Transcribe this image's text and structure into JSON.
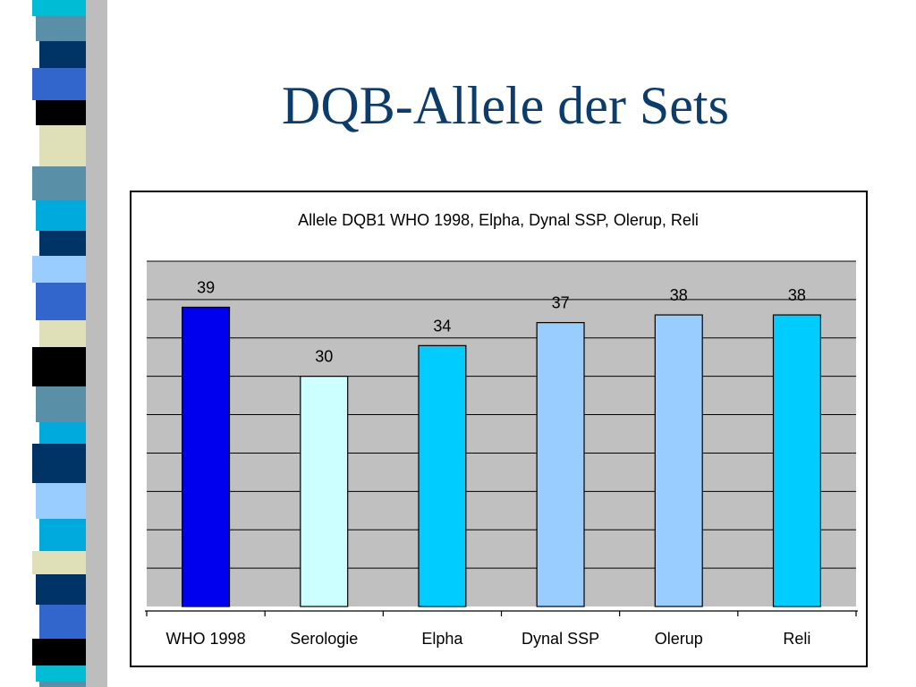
{
  "slide": {
    "title": "DQB-Allele der Sets"
  },
  "colors": {
    "title": "#0b3c6b",
    "plot_background": "#c0c0c0"
  },
  "chart_data": {
    "type": "bar",
    "title": "Allele DQB1 WHO 1998, Elpha, Dynal SSP, Olerup, Reli",
    "categories": [
      "WHO 1998",
      "Serologie",
      "Elpha",
      "Dynal SSP",
      "Olerup",
      "Reli"
    ],
    "values": [
      39,
      30,
      34,
      37,
      38,
      38
    ],
    "bar_colors": [
      "#0000ee",
      "#ccffff",
      "#00ccff",
      "#99ccff",
      "#99ccff",
      "#00ccff"
    ],
    "ylim": [
      0,
      45
    ],
    "grid": true,
    "legend": "none",
    "data_labels": true
  }
}
